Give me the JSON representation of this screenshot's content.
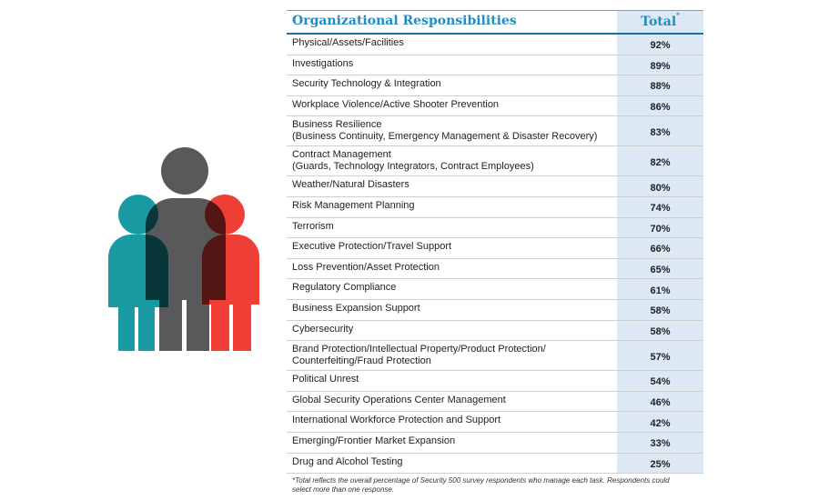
{
  "header": {
    "title": "Organizational Responsibilities",
    "total": "Total",
    "total_mark": "*"
  },
  "table": {
    "rows": [
      {
        "lines": [
          "Physical/Assets/Facilities"
        ],
        "total": "92%"
      },
      {
        "lines": [
          "Investigations"
        ],
        "total": "89%"
      },
      {
        "lines": [
          "Security Technology & Integration"
        ],
        "total": "88%"
      },
      {
        "lines": [
          "Workplace Violence/Active Shooter Prevention"
        ],
        "total": "86%"
      },
      {
        "lines": [
          "Business Resilience",
          "(Business Continuity, Emergency Management & Disaster Recovery)"
        ],
        "total": "83%"
      },
      {
        "lines": [
          "Contract Management",
          "(Guards, Technology Integrators, Contract Employees)"
        ],
        "total": "82%"
      },
      {
        "lines": [
          "Weather/Natural Disasters"
        ],
        "total": "80%"
      },
      {
        "lines": [
          "Risk Management Planning"
        ],
        "total": "74%"
      },
      {
        "lines": [
          "Terrorism"
        ],
        "total": "70%"
      },
      {
        "lines": [
          "Executive Protection/Travel Support"
        ],
        "total": "66%"
      },
      {
        "lines": [
          "Loss Prevention/Asset Protection"
        ],
        "total": "65%"
      },
      {
        "lines": [
          "Regulatory Compliance"
        ],
        "total": "61%"
      },
      {
        "lines": [
          "Business Expansion Support"
        ],
        "total": "58%"
      },
      {
        "lines": [
          "Cybersecurity"
        ],
        "total": "58%"
      },
      {
        "lines": [
          "Brand Protection/Intellectual Property/Product Protection/",
          "Counterfeiting/Fraud Protection"
        ],
        "total": "57%"
      },
      {
        "lines": [
          "Political Unrest"
        ],
        "total": "54%"
      },
      {
        "lines": [
          "Global Security Operations Center Management"
        ],
        "total": "46%"
      },
      {
        "lines": [
          "International Workforce Protection and Support"
        ],
        "total": "42%"
      },
      {
        "lines": [
          "Emerging/Frontier Market Expansion"
        ],
        "total": "33%"
      },
      {
        "lines": [
          "Drug and Alcohol Testing"
        ],
        "total": "25%"
      }
    ]
  },
  "footnote": {
    "lines": [
      "*Total reflects the overall percentage of Security 500 survey respondents who manage each task. Respondents could",
      "select more than one response."
    ]
  }
}
